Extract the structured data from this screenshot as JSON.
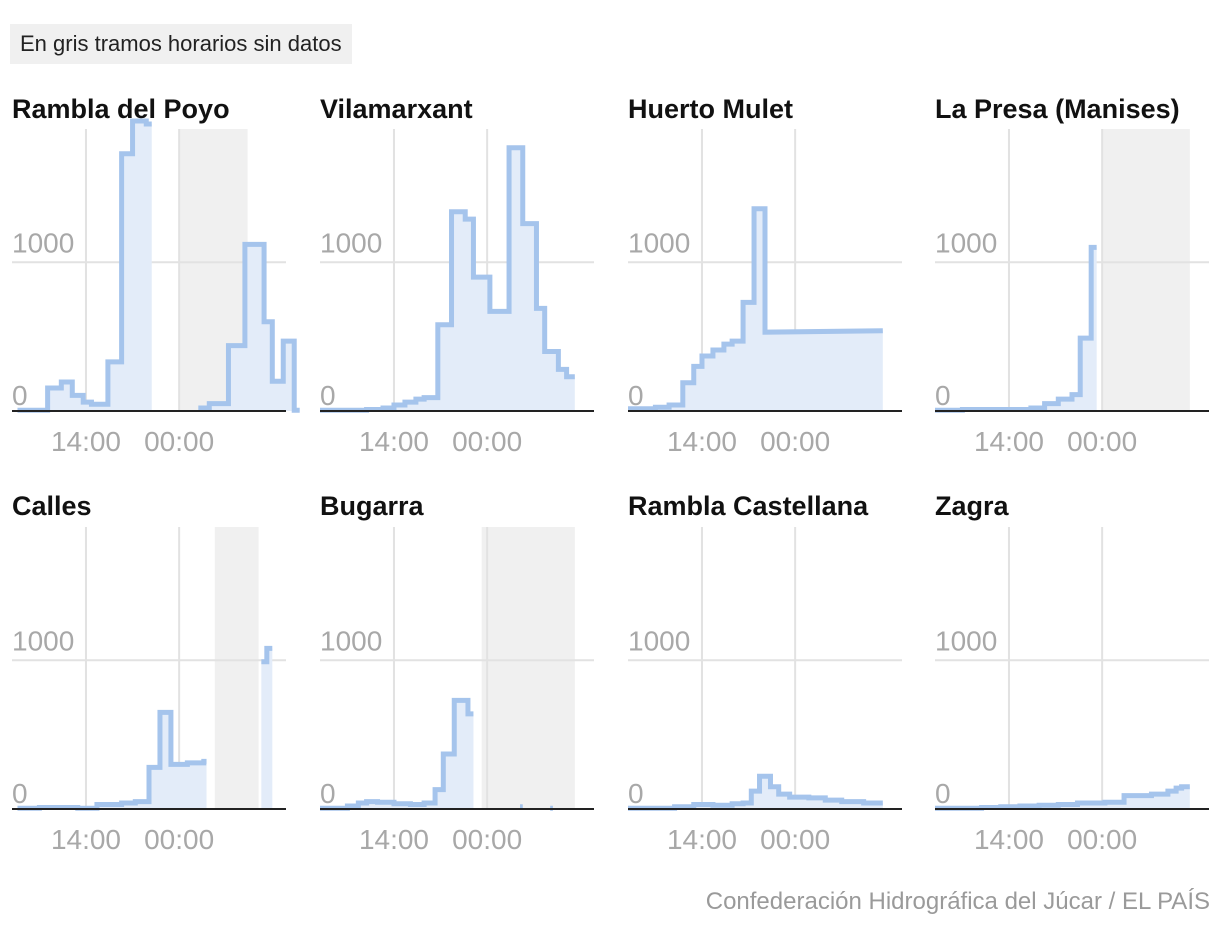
{
  "note": "En gris tramos horarios sin datos",
  "source": "Confederación Hidrográfica del Júcar / EL PAÍS",
  "colors": {
    "line": "#a5c4ec",
    "fill": "#e3ecf9",
    "gap": "#f0f0f0",
    "grid": "#e2e2e2",
    "axis_text": "#a8a8a8",
    "baseline": "#222222"
  },
  "chart_data": [
    {
      "type": "area",
      "title": "Rambla del Poyo",
      "xticks": [
        "14:00",
        "00:00"
      ],
      "ylim": [
        0,
        1950
      ],
      "yticks": [
        "0",
        "1000"
      ],
      "no_data_ranges": [
        [
          0.61,
          0.86
        ]
      ],
      "segments": [
        [
          [
            0.02,
            5
          ],
          [
            0.13,
            5
          ],
          [
            0.13,
            155
          ],
          [
            0.18,
            155
          ],
          [
            0.18,
            195
          ],
          [
            0.22,
            195
          ],
          [
            0.22,
            105
          ],
          [
            0.26,
            105
          ],
          [
            0.26,
            60
          ],
          [
            0.29,
            60
          ],
          [
            0.29,
            45
          ],
          [
            0.35,
            45
          ],
          [
            0.35,
            330
          ],
          [
            0.4,
            330
          ],
          [
            0.4,
            1730
          ],
          [
            0.44,
            1730
          ],
          [
            0.44,
            1950
          ],
          [
            0.49,
            1950
          ],
          [
            0.49,
            1930
          ],
          [
            0.51,
            1930
          ]
        ],
        [
          [
            0.68,
            20
          ],
          [
            0.72,
            20
          ],
          [
            0.72,
            50
          ],
          [
            0.79,
            50
          ],
          [
            0.79,
            440
          ],
          [
            0.85,
            440
          ],
          [
            0.85,
            1120
          ],
          [
            0.92,
            1120
          ],
          [
            0.92,
            600
          ],
          [
            0.95,
            600
          ],
          [
            0.95,
            200
          ],
          [
            0.99,
            200
          ],
          [
            0.99,
            470
          ],
          [
            1.03,
            470
          ],
          [
            1.03,
            5
          ],
          [
            1.05,
            5
          ]
        ]
      ]
    },
    {
      "type": "area",
      "title": "Vilamarxant",
      "xticks": [
        "14:00",
        "00:00"
      ],
      "ylim": [
        0,
        1950
      ],
      "yticks": [
        "0",
        "1000"
      ],
      "no_data_ranges": [],
      "segments": [
        [
          [
            0.0,
            5
          ],
          [
            0.1,
            5
          ],
          [
            0.17,
            5
          ],
          [
            0.17,
            10
          ],
          [
            0.23,
            10
          ],
          [
            0.23,
            20
          ],
          [
            0.27,
            20
          ],
          [
            0.27,
            40
          ],
          [
            0.31,
            40
          ],
          [
            0.31,
            60
          ],
          [
            0.35,
            60
          ],
          [
            0.35,
            80
          ],
          [
            0.38,
            80
          ],
          [
            0.38,
            90
          ],
          [
            0.43,
            90
          ],
          [
            0.43,
            580
          ],
          [
            0.48,
            580
          ],
          [
            0.48,
            1340
          ],
          [
            0.53,
            1340
          ],
          [
            0.53,
            1290
          ],
          [
            0.56,
            1290
          ],
          [
            0.56,
            900
          ],
          [
            0.62,
            900
          ],
          [
            0.62,
            670
          ],
          [
            0.69,
            670
          ],
          [
            0.69,
            1770
          ],
          [
            0.74,
            1770
          ],
          [
            0.74,
            1260
          ],
          [
            0.79,
            1260
          ],
          [
            0.79,
            690
          ],
          [
            0.82,
            690
          ],
          [
            0.82,
            400
          ],
          [
            0.87,
            400
          ],
          [
            0.87,
            280
          ],
          [
            0.9,
            280
          ],
          [
            0.9,
            230
          ],
          [
            0.93,
            230
          ]
        ]
      ]
    },
    {
      "type": "area",
      "title": "Huerto Mulet",
      "xticks": [
        "14:00",
        "00:00"
      ],
      "ylim": [
        0,
        1950
      ],
      "yticks": [
        "0",
        "1000"
      ],
      "no_data_ranges": [],
      "segments": [
        [
          [
            0.0,
            15
          ],
          [
            0.1,
            15
          ],
          [
            0.1,
            25
          ],
          [
            0.15,
            25
          ],
          [
            0.15,
            40
          ],
          [
            0.2,
            40
          ],
          [
            0.2,
            190
          ],
          [
            0.24,
            190
          ],
          [
            0.24,
            300
          ],
          [
            0.27,
            300
          ],
          [
            0.27,
            370
          ],
          [
            0.31,
            370
          ],
          [
            0.31,
            410
          ],
          [
            0.35,
            410
          ],
          [
            0.35,
            450
          ],
          [
            0.38,
            450
          ],
          [
            0.38,
            470
          ],
          [
            0.42,
            470
          ],
          [
            0.42,
            730
          ],
          [
            0.46,
            730
          ],
          [
            0.46,
            1360
          ],
          [
            0.5,
            1360
          ],
          [
            0.5,
            530
          ],
          [
            0.93,
            540
          ]
        ]
      ]
    },
    {
      "type": "area",
      "title": "La Presa (Manises)",
      "xticks": [
        "14:00",
        "00:00"
      ],
      "ylim": [
        0,
        1950
      ],
      "yticks": [
        "0",
        "1000"
      ],
      "no_data_ranges": [
        [
          0.61,
          0.93
        ]
      ],
      "segments": [
        [
          [
            0.0,
            5
          ],
          [
            0.1,
            5
          ],
          [
            0.1,
            10
          ],
          [
            0.35,
            10
          ],
          [
            0.35,
            20
          ],
          [
            0.4,
            20
          ],
          [
            0.4,
            50
          ],
          [
            0.45,
            50
          ],
          [
            0.45,
            80
          ],
          [
            0.5,
            80
          ],
          [
            0.5,
            110
          ],
          [
            0.53,
            110
          ],
          [
            0.53,
            490
          ],
          [
            0.57,
            490
          ],
          [
            0.57,
            1100
          ],
          [
            0.59,
            1100
          ]
        ]
      ]
    },
    {
      "type": "area",
      "title": "Calles",
      "xticks": [
        "14:00",
        "00:00"
      ],
      "ylim": [
        0,
        1950
      ],
      "yticks": [
        "0",
        "1000"
      ],
      "no_data_ranges": [
        [
          0.74,
          0.9
        ]
      ],
      "segments": [
        [
          [
            0.02,
            5
          ],
          [
            0.1,
            5
          ],
          [
            0.1,
            10
          ],
          [
            0.24,
            10
          ],
          [
            0.24,
            5
          ],
          [
            0.31,
            5
          ],
          [
            0.31,
            30
          ],
          [
            0.4,
            30
          ],
          [
            0.4,
            40
          ],
          [
            0.45,
            40
          ],
          [
            0.45,
            50
          ],
          [
            0.5,
            50
          ],
          [
            0.5,
            280
          ],
          [
            0.54,
            280
          ],
          [
            0.54,
            650
          ],
          [
            0.58,
            650
          ],
          [
            0.58,
            300
          ],
          [
            0.64,
            300
          ],
          [
            0.64,
            310
          ],
          [
            0.7,
            310
          ],
          [
            0.7,
            320
          ],
          [
            0.71,
            320
          ]
        ],
        [
          [
            0.91,
            990
          ],
          [
            0.93,
            990
          ],
          [
            0.93,
            1080
          ],
          [
            0.95,
            1080
          ]
        ]
      ]
    },
    {
      "type": "area",
      "title": "Bugarra",
      "xticks": [
        "14:00",
        "00:00"
      ],
      "ylim": [
        0,
        1950
      ],
      "yticks": [
        "0",
        "1000"
      ],
      "no_data_ranges": [
        [
          0.59,
          0.93
        ]
      ],
      "segments": [
        [
          [
            0.0,
            5
          ],
          [
            0.1,
            5
          ],
          [
            0.1,
            20
          ],
          [
            0.14,
            20
          ],
          [
            0.14,
            40
          ],
          [
            0.17,
            40
          ],
          [
            0.17,
            50
          ],
          [
            0.21,
            50
          ],
          [
            0.21,
            45
          ],
          [
            0.27,
            45
          ],
          [
            0.27,
            35
          ],
          [
            0.33,
            35
          ],
          [
            0.33,
            30
          ],
          [
            0.38,
            30
          ],
          [
            0.38,
            40
          ],
          [
            0.42,
            40
          ],
          [
            0.42,
            130
          ],
          [
            0.45,
            130
          ],
          [
            0.45,
            370
          ],
          [
            0.49,
            370
          ],
          [
            0.49,
            730
          ],
          [
            0.54,
            730
          ],
          [
            0.54,
            640
          ],
          [
            0.56,
            640
          ]
        ],
        [
          [
            0.73,
            15
          ],
          [
            0.74,
            15
          ]
        ],
        [
          [
            0.84,
            5
          ],
          [
            0.85,
            5
          ]
        ]
      ]
    },
    {
      "type": "area",
      "title": "Rambla Castellana",
      "xticks": [
        "14:00",
        "00:00"
      ],
      "ylim": [
        0,
        1950
      ],
      "yticks": [
        "0",
        "1000"
      ],
      "no_data_ranges": [],
      "segments": [
        [
          [
            0.0,
            5
          ],
          [
            0.1,
            5
          ],
          [
            0.17,
            5
          ],
          [
            0.17,
            15
          ],
          [
            0.24,
            15
          ],
          [
            0.24,
            30
          ],
          [
            0.31,
            30
          ],
          [
            0.31,
            25
          ],
          [
            0.38,
            25
          ],
          [
            0.38,
            35
          ],
          [
            0.42,
            35
          ],
          [
            0.42,
            40
          ],
          [
            0.45,
            40
          ],
          [
            0.45,
            120
          ],
          [
            0.48,
            120
          ],
          [
            0.48,
            220
          ],
          [
            0.52,
            220
          ],
          [
            0.52,
            150
          ],
          [
            0.55,
            150
          ],
          [
            0.55,
            100
          ],
          [
            0.59,
            100
          ],
          [
            0.59,
            80
          ],
          [
            0.66,
            80
          ],
          [
            0.66,
            75
          ],
          [
            0.72,
            75
          ],
          [
            0.72,
            60
          ],
          [
            0.78,
            60
          ],
          [
            0.78,
            50
          ],
          [
            0.86,
            50
          ],
          [
            0.86,
            40
          ],
          [
            0.93,
            40
          ]
        ]
      ]
    },
    {
      "type": "area",
      "title": "Zagra",
      "xticks": [
        "14:00",
        "00:00"
      ],
      "ylim": [
        0,
        1950
      ],
      "yticks": [
        "0",
        "1000"
      ],
      "no_data_ranges": [],
      "segments": [
        [
          [
            0.0,
            5
          ],
          [
            0.1,
            5
          ],
          [
            0.17,
            5
          ],
          [
            0.17,
            10
          ],
          [
            0.24,
            10
          ],
          [
            0.24,
            15
          ],
          [
            0.31,
            15
          ],
          [
            0.31,
            20
          ],
          [
            0.38,
            20
          ],
          [
            0.38,
            25
          ],
          [
            0.45,
            25
          ],
          [
            0.45,
            30
          ],
          [
            0.52,
            30
          ],
          [
            0.52,
            40
          ],
          [
            0.62,
            40
          ],
          [
            0.62,
            45
          ],
          [
            0.69,
            45
          ],
          [
            0.69,
            90
          ],
          [
            0.79,
            90
          ],
          [
            0.79,
            100
          ],
          [
            0.85,
            100
          ],
          [
            0.85,
            120
          ],
          [
            0.88,
            120
          ],
          [
            0.88,
            140
          ],
          [
            0.9,
            140
          ],
          [
            0.9,
            150
          ],
          [
            0.93,
            150
          ]
        ]
      ]
    }
  ]
}
